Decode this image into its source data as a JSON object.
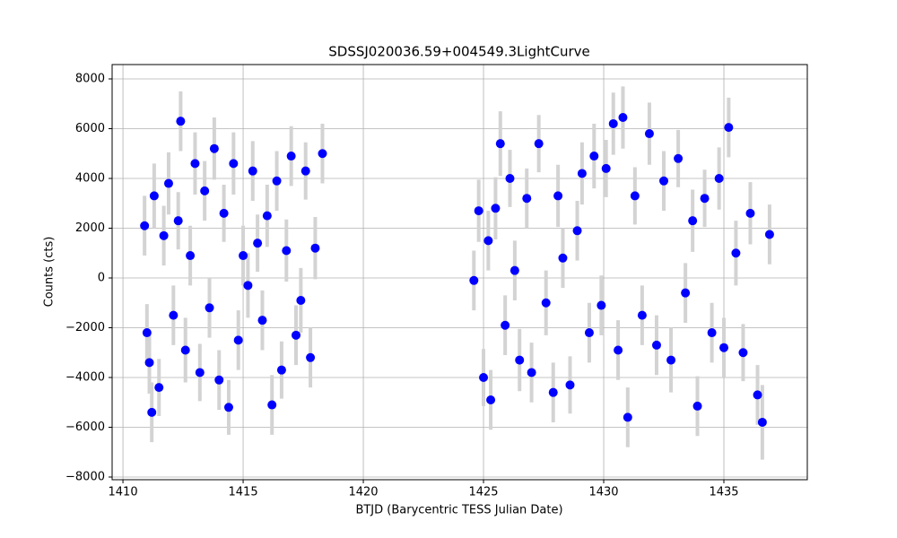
{
  "chart_data": {
    "type": "errorbar",
    "title": "SDSSJ020036.59+004549.3LightCurve",
    "x_label": "BTJD (Barycentric TESS Julian Date)",
    "y_label": "Counts (cts)",
    "xlim": [
      1409.55,
      1438.47
    ],
    "ylim": [
      -8108,
      8577
    ],
    "xticks": [
      1410,
      1415,
      1420,
      1425,
      1430,
      1435
    ],
    "yticks": [
      {
        "value": -8000,
        "label": "−8000"
      },
      {
        "value": -6000,
        "label": "−6000"
      },
      {
        "value": -4000,
        "label": "−4000"
      },
      {
        "value": -2000,
        "label": "−2000"
      },
      0,
      2000,
      4000,
      6000,
      8000
    ],
    "grid": true,
    "error_color": "#d3d3d3",
    "series": [
      {
        "color": "#0000ff",
        "x": [
          1410.9,
          1411.0,
          1411.1,
          1411.2,
          1411.3,
          1411.5,
          1411.7,
          1411.9,
          1412.1,
          1412.3,
          1412.4,
          1412.6,
          1412.8,
          1413.0,
          1413.2,
          1413.4,
          1413.6,
          1413.8,
          1414.0,
          1414.2,
          1414.4,
          1414.6,
          1414.8,
          1415.0,
          1415.2,
          1415.4,
          1415.6,
          1415.8,
          1416.0,
          1416.2,
          1416.4,
          1416.6,
          1416.8,
          1417.0,
          1417.2,
          1417.4,
          1417.6,
          1417.8,
          1418.0,
          1418.3,
          1424.6,
          1424.8,
          1425.0,
          1425.2,
          1425.3,
          1425.5,
          1425.7,
          1425.9,
          1426.1,
          1426.3,
          1426.5,
          1426.8,
          1427.0,
          1427.3,
          1427.6,
          1427.9,
          1428.1,
          1428.3,
          1428.6,
          1428.9,
          1429.1,
          1429.4,
          1429.6,
          1429.9,
          1430.1,
          1430.4,
          1430.6,
          1430.8,
          1431.0,
          1431.3,
          1431.6,
          1431.9,
          1432.2,
          1432.5,
          1432.8,
          1433.1,
          1433.4,
          1433.7,
          1433.9,
          1434.2,
          1434.5,
          1434.8,
          1435.0,
          1435.2,
          1435.5,
          1435.8,
          1436.1,
          1436.4,
          1436.6,
          1436.9
        ],
        "values": [
          2100,
          -2200,
          -3400,
          -5400,
          3300,
          -4400,
          1700,
          3800,
          -1500,
          2300,
          6300,
          -2900,
          900,
          4600,
          -3800,
          3500,
          -1200,
          5200,
          -4100,
          2600,
          -5200,
          4600,
          -2500,
          900,
          -300,
          4300,
          1400,
          -1700,
          2500,
          -5100,
          3900,
          -3700,
          1100,
          4900,
          -2300,
          -900,
          4300,
          -3200,
          1200,
          5000,
          -100,
          2700,
          -4000,
          1500,
          -4900,
          2800,
          5400,
          -1900,
          4000,
          300,
          -3300,
          3200,
          -3800,
          5400,
          -1000,
          -4600,
          3300,
          800,
          -4300,
          1900,
          4200,
          -2200,
          4900,
          -1100,
          4400,
          6200,
          -2900,
          6450,
          -5600,
          3300,
          -1500,
          5800,
          -2700,
          3900,
          -3300,
          4800,
          -600,
          2300,
          -5150,
          3200,
          -2200,
          4000,
          -2800,
          6050,
          1000,
          -3000,
          2600,
          -4700,
          -5800,
          1750
        ],
        "errors": [
          1200,
          1150,
          1250,
          1200,
          1300,
          1150,
          1200,
          1250,
          1200,
          1150,
          1200,
          1300,
          1200,
          1250,
          1150,
          1200,
          1200,
          1250,
          1200,
          1150,
          1100,
          1250,
          1200,
          1200,
          1300,
          1200,
          1150,
          1200,
          1250,
          1200,
          1200,
          1150,
          1250,
          1200,
          1200,
          1300,
          1150,
          1200,
          1250,
          1200,
          1200,
          1250,
          1150,
          1200,
          1200,
          1250,
          1300,
          1200,
          1150,
          1200,
          1250,
          1200,
          1200,
          1150,
          1300,
          1200,
          1250,
          1200,
          1150,
          1200,
          1250,
          1200,
          1300,
          1200,
          1150,
          1250,
          1200,
          1250,
          1200,
          1150,
          1200,
          1250,
          1200,
          1200,
          1300,
          1150,
          1200,
          1250,
          1200,
          1150,
          1200,
          1250,
          1200,
          1200,
          1300,
          1150,
          1250,
          1200,
          1500,
          1200
        ]
      }
    ]
  }
}
